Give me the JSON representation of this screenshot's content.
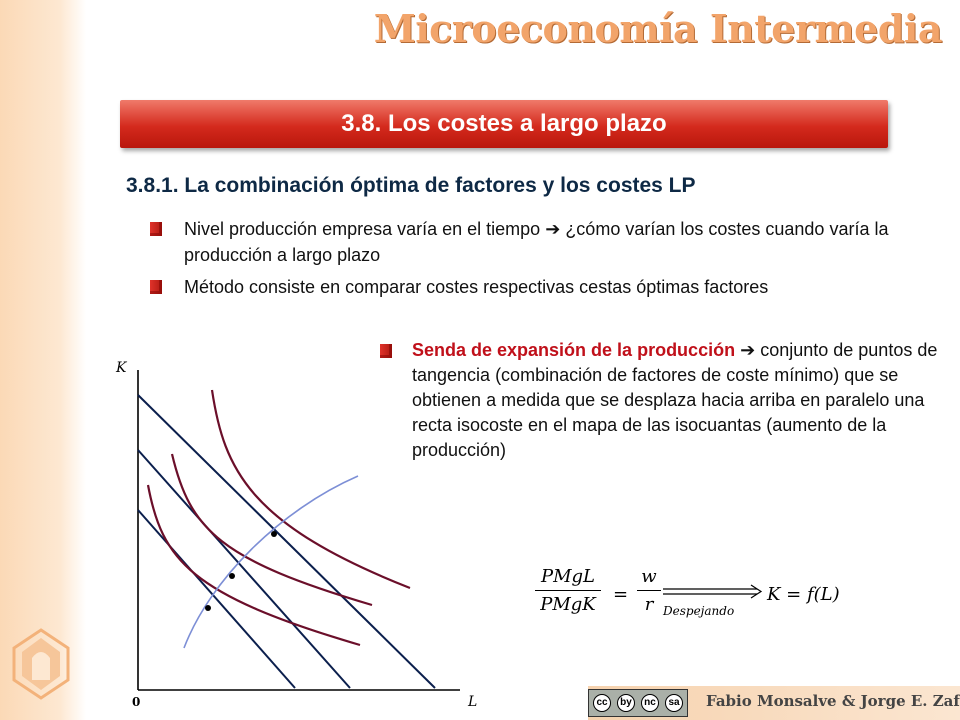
{
  "header": {
    "brand_title": "Microeconomía Intermedia"
  },
  "section": {
    "title": "3.8. Los costes a largo plazo",
    "subtitle": "3.8.1. La combinación óptima de factores y los costes LP"
  },
  "bullets": [
    {
      "before_arrow": "Nivel producción empresa varía en el tiempo",
      "after_arrow": "¿cómo varían los costes cuando varía la producción a largo plazo"
    },
    {
      "text": "Método consiste en comparar costes respectivas cestas óptimas factores"
    }
  ],
  "expansion_bullet": {
    "highlight": "Senda de expansión de la producción",
    "text": "conjunto de puntos de tangencia (combinación de factores de coste mínimo) que se obtienen a medida que se desplaza hacia arriba en paralelo una recta isocoste en el mapa de las isocuantas (aumento de la producción)"
  },
  "diagram": {
    "y_axis_label": "K",
    "x_axis_label": "L",
    "origin_label": "0",
    "colors": {
      "isocost": "#0b1f4d",
      "isoquant": "#6b0f2a",
      "expansion_path": "#7d8fd6"
    }
  },
  "formula": {
    "num1": "PMgL",
    "den1": "PMgK",
    "eq": "=",
    "num2": "w",
    "den2": "r",
    "arrow_label": "Despejando",
    "result": "K = f(L)"
  },
  "footer": {
    "cc_icons": [
      "cc",
      "by",
      "nc",
      "sa"
    ],
    "authors": "Fabio Monsalve & Jorge E. Zafrilla"
  },
  "arrow_icon": "➔"
}
